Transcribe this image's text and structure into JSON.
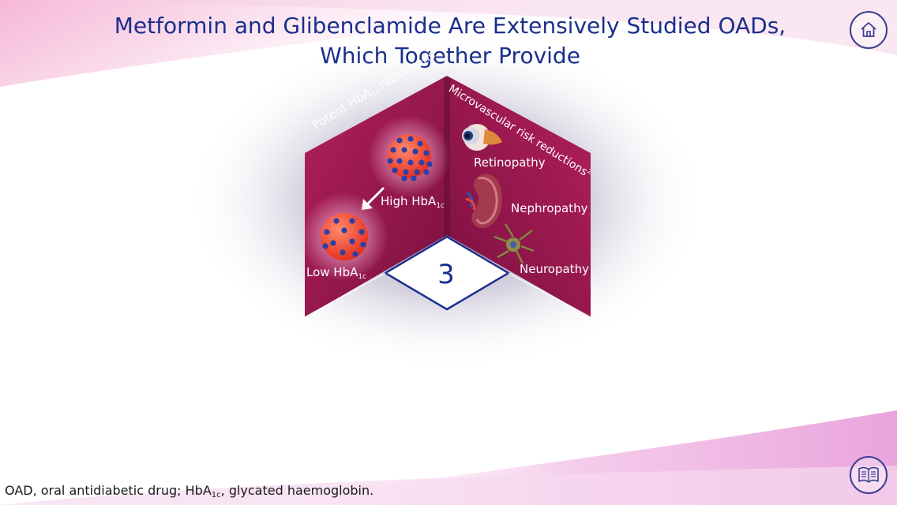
{
  "title": {
    "line1": "Metformin and Glibenclamide Are Extensively Studied OADs,",
    "line2": "Which Together Provide"
  },
  "left_panel": {
    "heading_pre": "Potent HbA",
    "heading_sub": "1c",
    "heading_post": " reductions",
    "heading_ref": "1",
    "high_label": "High HbA",
    "high_sub": "1c",
    "low_label": "Low HbA",
    "low_sub": "1c"
  },
  "right_panel": {
    "heading": "Microvascular risk reductions",
    "heading_ref": "2",
    "items": [
      "Retinopathy",
      "Nephropathy",
      "Neuropathy"
    ]
  },
  "center_number": "3",
  "footnote": {
    "pre": "OAD, oral antidiabetic drug; HbA",
    "sub": "1c",
    "post": ", glycated haemoglobin."
  },
  "icons": {
    "home": "home-icon",
    "references": "book-icon",
    "eye": "eye-icon",
    "kidney": "kidney-icon",
    "neuron": "neuron-icon",
    "cell": "blood-cell-icon",
    "arrow": "arrow-down-left-icon"
  },
  "colors": {
    "title": "#1b2f8c",
    "panel": "#9b1648",
    "panel_dark": "#6d0e36",
    "accent_pink": "#e2188a",
    "cell_red": "#f2462e",
    "cell_dot": "#2b3fa8"
  }
}
